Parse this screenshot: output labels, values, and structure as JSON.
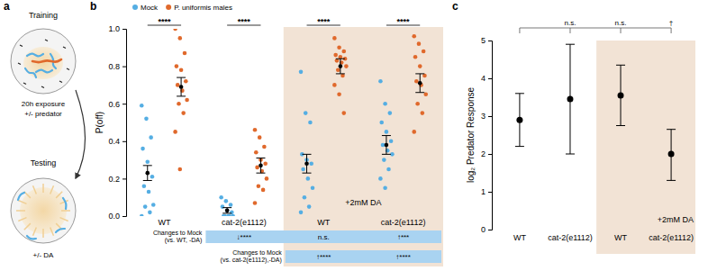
{
  "chart_data": [
    {
      "type": "diagram",
      "panel": "a",
      "texts": {
        "training": "Training",
        "training_condition": [
          "20h exposure",
          "+/- predator"
        ],
        "testing": "Testing",
        "testing_condition": "+/- DA"
      }
    },
    {
      "type": "strip",
      "panel": "b",
      "y_label": "P(off)",
      "categories": [
        "WT",
        "cat-2(e1112)",
        "WT",
        "cat-2(e1112)"
      ],
      "ylim": [
        0,
        1
      ],
      "yticks": [
        {
          "value": 0,
          "label": "0.0"
        },
        0.2,
        0.4,
        0.6,
        0.8,
        {
          "value": 1,
          "label": "1.0"
        }
      ],
      "legend": "top",
      "series": [
        {
          "name": "Mock",
          "color": "#55aee3",
          "values": [
            [
              0.59,
              0.52,
              0.42,
              0.36,
              0.29,
              0.21,
              0.16,
              0.13,
              0.06,
              0.05,
              0.02,
              0.0
            ],
            [
              0.1,
              0.08,
              0.06,
              0.05,
              0.03,
              0.02,
              0.0,
              0.0,
              0.0,
              0.0,
              0.0
            ],
            [
              0.77,
              0.55,
              0.5,
              0.33,
              0.3,
              0.28,
              0.25,
              0.2,
              0.15,
              0.1,
              0.05,
              0.02
            ],
            [
              0.72,
              0.6,
              0.55,
              0.5,
              0.45,
              0.4,
              0.38,
              0.35,
              0.33,
              0.3,
              0.25,
              0.2,
              0.15
            ]
          ],
          "mean": [
            0.23,
            0.03,
            0.28,
            0.38
          ],
          "sem": [
            0.04,
            0.015,
            0.05,
            0.05
          ]
        },
        {
          "name": "P. uniformis males",
          "color": "#e0692c",
          "values": [
            [
              1.0,
              0.95,
              0.87,
              0.8,
              0.78,
              0.72,
              0.7,
              0.67,
              0.62,
              0.6,
              0.55,
              0.45,
              0.25
            ],
            [
              0.46,
              0.42,
              0.37,
              0.34,
              0.3,
              0.28,
              0.26,
              0.24,
              0.2,
              0.16,
              0.14,
              0.07
            ],
            [
              0.95,
              0.9,
              0.88,
              0.86,
              0.85,
              0.84,
              0.83,
              0.82,
              0.8,
              0.78,
              0.75,
              0.7,
              0.65,
              0.55
            ],
            [
              0.96,
              0.92,
              0.88,
              0.85,
              0.8,
              0.75,
              0.72,
              0.7,
              0.65,
              0.6,
              0.55,
              0.45
            ]
          ],
          "mean": [
            0.69,
            0.27,
            0.8,
            0.71
          ],
          "sem": [
            0.05,
            0.04,
            0.04,
            0.05
          ]
        }
      ],
      "significance": [
        "****",
        "****",
        "****",
        "****"
      ],
      "highlight": {
        "categories": [
          2,
          3
        ],
        "label": "+2mM DA"
      },
      "comparisons": [
        {
          "label": [
            "Changes to Mock",
            "(vs. WT, -DA)"
          ],
          "categories": [
            1,
            2,
            3
          ],
          "labels": [
            "↓****",
            "n.s.",
            "↑***"
          ]
        },
        {
          "label": [
            "Changes to Mock",
            "(vs. cat-2(e1112),-DA)"
          ],
          "categories": [
            2,
            3
          ],
          "labels": [
            "↑****",
            "↑****"
          ]
        }
      ]
    },
    {
      "type": "errorbar",
      "panel": "c",
      "y_label": "log₂ Predator Response",
      "categories": [
        "WT",
        "cat-2(e1112)",
        "WT",
        "cat-2(e1112)"
      ],
      "ylim": [
        0,
        5
      ],
      "yticks": [
        0,
        1,
        2,
        3,
        4,
        5
      ],
      "values": [
        2.9,
        3.45,
        3.55,
        2.0
      ],
      "error_low": [
        2.2,
        2.0,
        2.75,
        1.3
      ],
      "error_high": [
        3.6,
        4.9,
        4.35,
        2.65
      ],
      "color": "#000000",
      "highlight": {
        "categories": [
          2,
          3
        ],
        "label": "+2mM DA"
      },
      "comparisons": {
        "reference": 0,
        "categories": [
          1,
          2,
          3
        ],
        "labels": [
          "n.s.",
          "n.s.",
          "†"
        ]
      }
    }
  ]
}
